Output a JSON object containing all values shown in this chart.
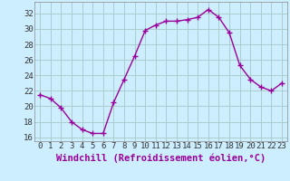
{
  "x": [
    0,
    1,
    2,
    3,
    4,
    5,
    6,
    7,
    8,
    9,
    10,
    11,
    12,
    13,
    14,
    15,
    16,
    17,
    18,
    19,
    20,
    21,
    22,
    23
  ],
  "y": [
    21.5,
    21.0,
    19.8,
    18.0,
    17.0,
    16.5,
    16.5,
    20.5,
    23.5,
    26.5,
    29.8,
    30.5,
    31.0,
    31.0,
    31.2,
    31.5,
    32.5,
    31.5,
    29.5,
    25.3,
    23.5,
    22.5,
    22.0,
    23.0
  ],
  "line_color": "#990099",
  "marker": "+",
  "marker_size": 4,
  "bg_color": "#cceeff",
  "grid_color": "#aacccc",
  "xlabel": "Windchill (Refroidissement éolien,°C)",
  "xlabel_fontsize": 7.5,
  "ylim": [
    15.5,
    33.5
  ],
  "xlim": [
    -0.5,
    23.5
  ],
  "yticks": [
    16,
    18,
    20,
    22,
    24,
    26,
    28,
    30,
    32
  ],
  "xticks": [
    0,
    1,
    2,
    3,
    4,
    5,
    6,
    7,
    8,
    9,
    10,
    11,
    12,
    13,
    14,
    15,
    16,
    17,
    18,
    19,
    20,
    21,
    22,
    23
  ],
  "tick_fontsize": 6.5,
  "line_width": 1.0
}
